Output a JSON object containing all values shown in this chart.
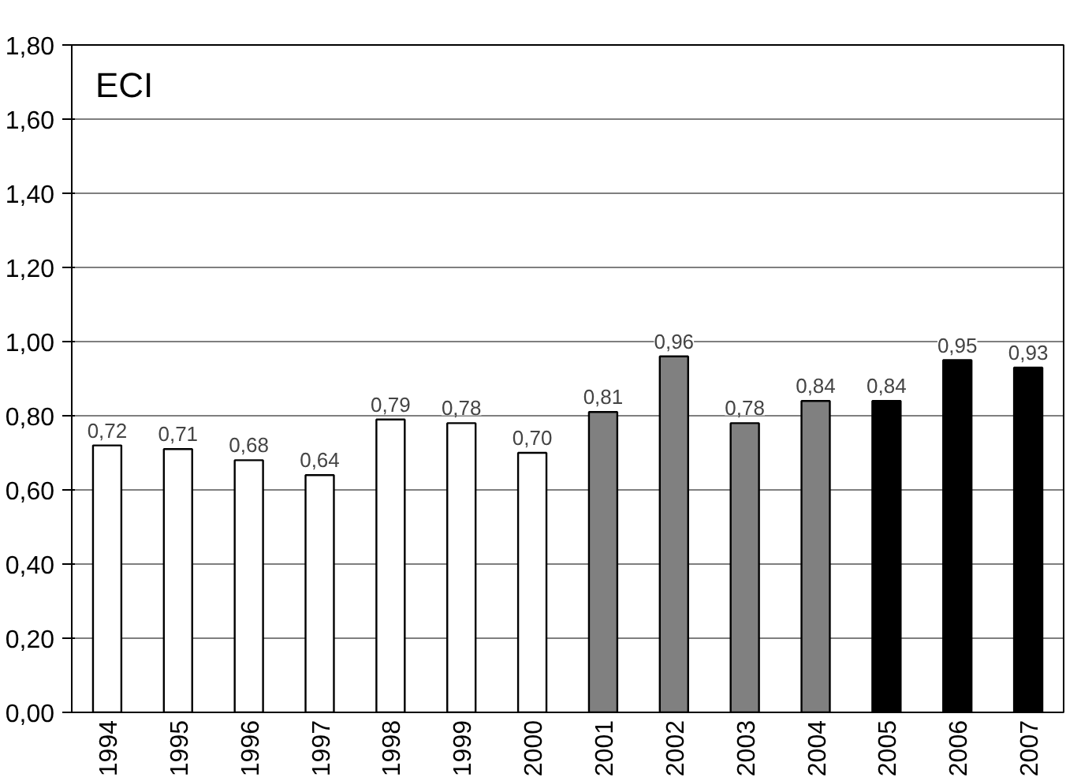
{
  "chart_data": {
    "type": "bar",
    "title": "ECI",
    "categories": [
      "1994",
      "1995",
      "1996",
      "1997",
      "1998",
      "1999",
      "2000",
      "2001",
      "2002",
      "2003",
      "2004",
      "2005",
      "2006",
      "2007"
    ],
    "values": [
      0.72,
      0.71,
      0.68,
      0.64,
      0.79,
      0.78,
      0.7,
      0.81,
      0.96,
      0.78,
      0.84,
      0.84,
      0.95,
      0.93
    ],
    "value_labels": [
      "0,72",
      "0,71",
      "0,68",
      "0,64",
      "0,79",
      "0,78",
      "0,70",
      "0,81",
      "0,96",
      "0,78",
      "0,84",
      "0,84",
      "0,95",
      "0,93"
    ],
    "colors": [
      "#ffffff",
      "#ffffff",
      "#ffffff",
      "#ffffff",
      "#ffffff",
      "#ffffff",
      "#ffffff",
      "#808080",
      "#808080",
      "#808080",
      "#808080",
      "#000000",
      "#000000",
      "#000000"
    ],
    "ylim": [
      0,
      1.8
    ],
    "yticks": [
      {
        "value": 0,
        "label": "0,00"
      },
      {
        "value": 0.2,
        "label": "0,20"
      },
      {
        "value": 0.4,
        "label": "0,40"
      },
      {
        "value": 0.6,
        "label": "0,60"
      },
      {
        "value": 0.8,
        "label": "0,80"
      },
      {
        "value": 1.0,
        "label": "1,00"
      },
      {
        "value": 1.2,
        "label": "1,20"
      },
      {
        "value": 1.4,
        "label": "1,40"
      },
      {
        "value": 1.6,
        "label": "1,60"
      },
      {
        "value": 1.8,
        "label": "1,80"
      }
    ],
    "grid": "y"
  }
}
